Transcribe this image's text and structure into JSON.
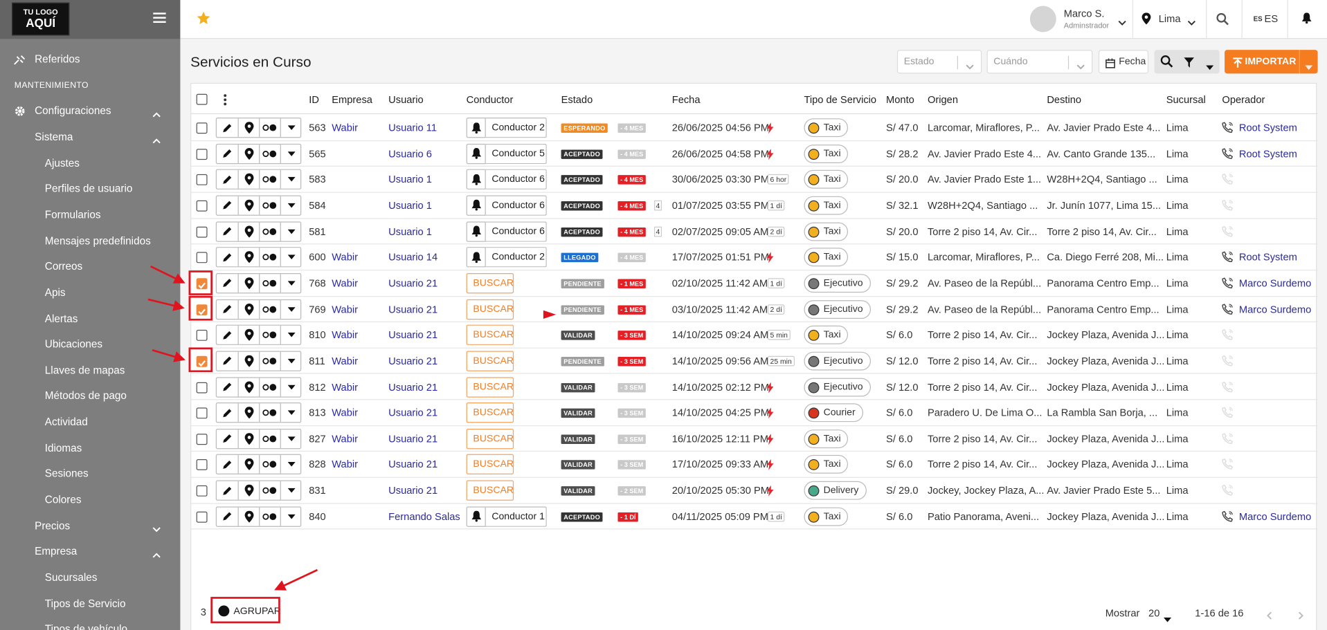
{
  "sidebar": {
    "logo": [
      "TU LOGO",
      "AQUÍ"
    ],
    "items": [
      {
        "label": "Referidos",
        "kind": "top"
      },
      {
        "label": "MANTENIMIENTO",
        "kind": "section"
      },
      {
        "label": "Configuraciones",
        "kind": "group",
        "open": true
      },
      {
        "label": "Sistema",
        "kind": "sub",
        "open": true
      },
      {
        "label": "Ajustes",
        "kind": "leaf"
      },
      {
        "label": "Perfiles de usuario",
        "kind": "leaf"
      },
      {
        "label": "Formularios",
        "kind": "leaf"
      },
      {
        "label": "Mensajes predefinidos",
        "kind": "leaf"
      },
      {
        "label": "Correos",
        "kind": "leaf"
      },
      {
        "label": "Apis",
        "kind": "leaf"
      },
      {
        "label": "Alertas",
        "kind": "leaf"
      },
      {
        "label": "Ubicaciones",
        "kind": "leaf"
      },
      {
        "label": "Llaves de mapas",
        "kind": "leaf"
      },
      {
        "label": "Métodos de pago",
        "kind": "leaf"
      },
      {
        "label": "Actividad",
        "kind": "leaf"
      },
      {
        "label": "Idiomas",
        "kind": "leaf"
      },
      {
        "label": "Sesiones",
        "kind": "leaf"
      },
      {
        "label": "Colores",
        "kind": "leaf"
      },
      {
        "label": "Precios",
        "kind": "sub",
        "open": false
      },
      {
        "label": "Empresa",
        "kind": "sub",
        "open": true
      },
      {
        "label": "Sucursales",
        "kind": "leaf"
      },
      {
        "label": "Tipos de Servicio",
        "kind": "leaf"
      },
      {
        "label": "Tipos de vehículo",
        "kind": "leaf"
      }
    ]
  },
  "topbar": {
    "user_name": "Marco S.",
    "user_role": "Adminstrador",
    "location": "Lima",
    "lang_flag": "ES",
    "lang": "ES"
  },
  "page": {
    "title": "Servicios en Curso",
    "filter_estado": "Estado",
    "filter_cuando": "Cuándo",
    "fecha_button": "Fecha",
    "import_button": "IMPORTAR"
  },
  "table": {
    "columns": [
      "ID",
      "Empresa",
      "Usuario",
      "Conductor",
      "Estado",
      "Fecha",
      "Tipo de Servicio",
      "Monto",
      "Origen",
      "Destino",
      "Sucursal",
      "Operador"
    ],
    "rows": [
      {
        "checked": false,
        "id": 563,
        "empresa": "Wabir",
        "usuario": "Usuario 11",
        "conductor": "Conductor 2",
        "estado": "ESPERANDO",
        "estado_color": "#f28a1f",
        "age": "- 4 MES",
        "age_alert": false,
        "fecha": "26/06/2025 04:56 PM",
        "tipo": "Taxi",
        "monto": "S/ 47.0",
        "origen": "Larcomar, Miraflores, P...",
        "destino": "Av. Javier Prado Este 4...",
        "sucursal": "Lima",
        "operador": "Root System"
      },
      {
        "checked": false,
        "id": 565,
        "usuario": "Usuario 6",
        "conductor": "Conductor 5",
        "estado": "ACEPTADO",
        "estado_color": "#333333",
        "age": "- 4 MES",
        "age_alert": false,
        "fecha": "26/06/2025 04:58 PM",
        "tipo": "Taxi",
        "monto": "S/ 28.2",
        "origen": "Av. Javier Prado Este 4...",
        "destino": "Av. Canto Grande 135...",
        "sucursal": "Lima",
        "operador": "Root System"
      },
      {
        "checked": false,
        "id": 583,
        "usuario": "Usuario 1",
        "conductor": "Conductor 6",
        "estado": "ACEPTADO",
        "estado_color": "#333333",
        "age": "- 4 MES",
        "age_alert": true,
        "fecha": "30/06/2025 03:30 PM",
        "wait": "6 hor",
        "tipo": "Taxi",
        "monto": "S/ 20.0",
        "origen": "Av. Javier Prado Este 1...",
        "destino": "W28H+2Q4, Santiago ...",
        "sucursal": "Lima"
      },
      {
        "checked": false,
        "id": 584,
        "usuario": "Usuario 1",
        "conductor": "Conductor 6",
        "estado": "ACEPTADO",
        "estado_color": "#333333",
        "age": "- 4 MES",
        "age_alert": true,
        "count": 4,
        "fecha": "01/07/2025 03:55 PM",
        "wait": "1 dí",
        "tipo": "Taxi",
        "monto": "S/ 32.1",
        "origen": "W28H+2Q4, Santiago ...",
        "destino": "Jr. Junín 1077, Lima 15...",
        "sucursal": "Lima"
      },
      {
        "checked": false,
        "id": 581,
        "usuario": "Usuario 1",
        "conductor": "Conductor 6",
        "estado": "ACEPTADO",
        "estado_color": "#333333",
        "age": "- 4 MES",
        "age_alert": true,
        "count": 4,
        "fecha": "02/07/2025 09:05 AM",
        "wait": "2 dí",
        "tipo": "Taxi",
        "monto": "S/ 20.0",
        "origen": "Torre 2 piso 14, Av. Cir...",
        "destino": "Torre 2 piso 14, Av. Cir...",
        "sucursal": "Lima"
      },
      {
        "checked": false,
        "id": 600,
        "empresa": "Wabir",
        "usuario": "Usuario 14",
        "conductor": "Conductor 2",
        "estado": "LLEGADO",
        "estado_color": "#1f6fd1",
        "age": "- 4 MES",
        "age_alert": false,
        "fecha": "17/07/2025 01:51 PM",
        "tipo": "Taxi",
        "monto": "S/ 15.0",
        "origen": "Larcomar, Miraflores, P...",
        "destino": "Ca. Diego Ferré 208, Mi...",
        "sucursal": "Lima",
        "operador": "Root System"
      },
      {
        "checked": true,
        "id": 768,
        "empresa": "Wabir",
        "usuario": "Usuario 21",
        "conductor_action": "BUSCAR",
        "estado": "PENDIENTE",
        "estado_color": "#9e9e9e",
        "age": "- 1 MES",
        "age_alert": true,
        "fecha": "02/10/2025 11:42 AM",
        "wait": "1 dí",
        "tipo": "Ejecutivo",
        "monto": "S/ 29.2",
        "origen": "Av. Paseo de la Repúbl...",
        "destino": "Panorama Centro Emp...",
        "sucursal": "Lima",
        "operador": "Marco Surdemo"
      },
      {
        "checked": true,
        "id": 769,
        "empresa": "Wabir",
        "usuario": "Usuario 21",
        "conductor_action": "BUSCAR",
        "estado": "PENDIENTE",
        "estado_color": "#9e9e9e",
        "age": "- 1 MES",
        "age_alert": true,
        "fecha": "03/10/2025 11:42 AM",
        "wait": "2 dí",
        "tipo": "Ejecutivo",
        "monto": "S/ 29.2",
        "origen": "Av. Paseo de la Repúbl...",
        "destino": "Panorama Centro Emp...",
        "sucursal": "Lima",
        "operador": "Marco Surdemo"
      },
      {
        "checked": false,
        "id": 810,
        "empresa": "Wabir",
        "usuario": "Usuario 21",
        "conductor_action": "BUSCAR",
        "estado": "VALIDAR",
        "estado_color": "#4d4d4d",
        "age": "- 3 SEM",
        "age_alert": true,
        "fecha": "14/10/2025 09:24 AM",
        "wait": "5 min",
        "tipo": "Taxi",
        "monto": "S/ 6.0",
        "origen": "Torre 2 piso 14, Av. Cir...",
        "destino": "Jockey Plaza, Avenida J...",
        "sucursal": "Lima"
      },
      {
        "checked": true,
        "id": 811,
        "empresa": "Wabir",
        "usuario": "Usuario 21",
        "conductor_action": "BUSCAR",
        "estado": "PENDIENTE",
        "estado_color": "#9e9e9e",
        "age": "- 3 SEM",
        "age_alert": true,
        "fecha": "14/10/2025 09:56 AM",
        "wait": "25 min",
        "tipo": "Ejecutivo",
        "monto": "S/ 12.0",
        "origen": "Torre 2 piso 14, Av. Cir...",
        "destino": "Jockey Plaza, Avenida J...",
        "sucursal": "Lima"
      },
      {
        "checked": false,
        "id": 812,
        "empresa": "Wabir",
        "usuario": "Usuario 21",
        "conductor_action": "BUSCAR",
        "estado": "VALIDAR",
        "estado_color": "#4d4d4d",
        "age": "- 3 SEM",
        "age_alert": false,
        "fecha": "14/10/2025 02:12 PM",
        "tipo": "Ejecutivo",
        "monto": "S/ 12.0",
        "origen": "Torre 2 piso 14, Av. Cir...",
        "destino": "Jockey Plaza, Avenida J...",
        "sucursal": "Lima"
      },
      {
        "checked": false,
        "id": 813,
        "empresa": "Wabir",
        "usuario": "Usuario 21",
        "conductor_action": "BUSCAR",
        "estado": "VALIDAR",
        "estado_color": "#4d4d4d",
        "age": "- 3 SEM",
        "age_alert": false,
        "fecha": "14/10/2025 04:25 PM",
        "tipo": "Courier",
        "monto": "S/ 6.0",
        "origen": "Paradero U. De Lima O...",
        "destino": "La Rambla San Borja, ...",
        "sucursal": "Lima"
      },
      {
        "checked": false,
        "id": 827,
        "empresa": "Wabir",
        "usuario": "Usuario 21",
        "conductor_action": "BUSCAR",
        "estado": "VALIDAR",
        "estado_color": "#4d4d4d",
        "age": "- 3 SEM",
        "age_alert": false,
        "fecha": "16/10/2025 12:11 PM",
        "tipo": "Taxi",
        "monto": "S/ 6.0",
        "origen": "Torre 2 piso 14, Av. Cir...",
        "destino": "Jockey Plaza, Avenida J...",
        "sucursal": "Lima"
      },
      {
        "checked": false,
        "id": 828,
        "empresa": "Wabir",
        "usuario": "Usuario 21",
        "conductor_action": "BUSCAR",
        "estado": "VALIDAR",
        "estado_color": "#4d4d4d",
        "age": "- 3 SEM",
        "age_alert": false,
        "fecha": "17/10/2025 09:33 AM",
        "tipo": "Taxi",
        "monto": "S/ 6.0",
        "origen": "Torre 2 piso 14, Av. Cir...",
        "destino": "Jockey Plaza, Avenida J...",
        "sucursal": "Lima"
      },
      {
        "checked": false,
        "id": 831,
        "usuario": "Usuario 21",
        "conductor_action": "BUSCAR",
        "estado": "VALIDAR",
        "estado_color": "#4d4d4d",
        "age": "- 2 SEM",
        "age_alert": false,
        "fecha": "20/10/2025 05:30 PM",
        "tipo": "Delivery",
        "monto": "S/ 29.0",
        "origen": "Jockey, Jockey Plaza, A...",
        "destino": "Av. Javier Prado Este 5...",
        "sucursal": "Lima"
      },
      {
        "checked": false,
        "id": 840,
        "usuario": "Fernando Salas",
        "conductor": "Conductor 1",
        "estado": "ACEPTADO",
        "estado_color": "#333333",
        "age": "- 1 DÍ",
        "age_alert": true,
        "fecha": "04/11/2025 05:09 PM",
        "wait": "1 dí",
        "tipo": "Taxi",
        "monto": "S/ 6.0",
        "origen": "Patio Panorama, Aveni...",
        "destino": "Jockey Plaza, Avenida J...",
        "sucursal": "Lima",
        "operador": "Marco Surdemo"
      }
    ]
  },
  "footer": {
    "selected_count": 3,
    "group_button": "AGRUPAR",
    "show_label": "Mostrar",
    "page_size": 20,
    "range": "1-16 de 16"
  }
}
